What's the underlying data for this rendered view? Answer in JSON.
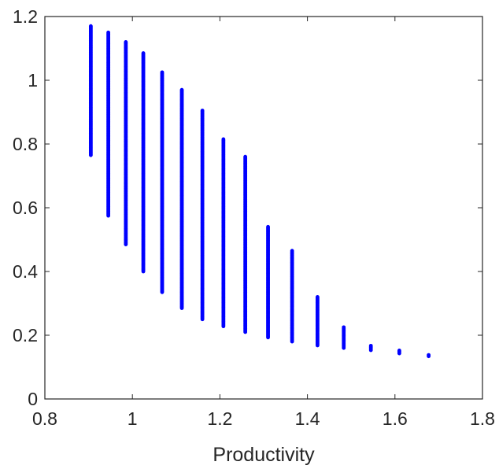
{
  "chart_data": {
    "type": "scatter",
    "title": "",
    "xlabel": "Productivity",
    "ylabel": "",
    "xlim": [
      0.8,
      1.8
    ],
    "ylim": [
      0,
      1.2
    ],
    "xticks": [
      "0.8",
      "1",
      "1.2",
      "1.4",
      "1.6",
      "1.8"
    ],
    "yticks": [
      "0",
      "0.2",
      "0.4",
      "0.6",
      "0.8",
      "1",
      "1.2"
    ],
    "grid": false,
    "box": true,
    "marker_color": "#0000ff",
    "axis_color": "#262626",
    "columns": [
      {
        "x": 0.905,
        "y_min": 0.765,
        "y_max": 1.17
      },
      {
        "x": 0.945,
        "y_min": 0.575,
        "y_max": 1.15
      },
      {
        "x": 0.985,
        "y_min": 0.485,
        "y_max": 1.12
      },
      {
        "x": 1.025,
        "y_min": 0.4,
        "y_max": 1.085
      },
      {
        "x": 1.068,
        "y_min": 0.335,
        "y_max": 1.025
      },
      {
        "x": 1.113,
        "y_min": 0.285,
        "y_max": 0.97
      },
      {
        "x": 1.16,
        "y_min": 0.25,
        "y_max": 0.905
      },
      {
        "x": 1.208,
        "y_min": 0.228,
        "y_max": 0.815
      },
      {
        "x": 1.258,
        "y_min": 0.21,
        "y_max": 0.76
      },
      {
        "x": 1.31,
        "y_min": 0.193,
        "y_max": 0.54
      },
      {
        "x": 1.365,
        "y_min": 0.18,
        "y_max": 0.465
      },
      {
        "x": 1.423,
        "y_min": 0.168,
        "y_max": 0.32
      },
      {
        "x": 1.483,
        "y_min": 0.16,
        "y_max": 0.225
      },
      {
        "x": 1.545,
        "y_min": 0.153,
        "y_max": 0.167
      },
      {
        "x": 1.61,
        "y_min": 0.143,
        "y_max": 0.152
      },
      {
        "x": 1.677,
        "y_min": 0.134,
        "y_max": 0.138
      }
    ]
  }
}
